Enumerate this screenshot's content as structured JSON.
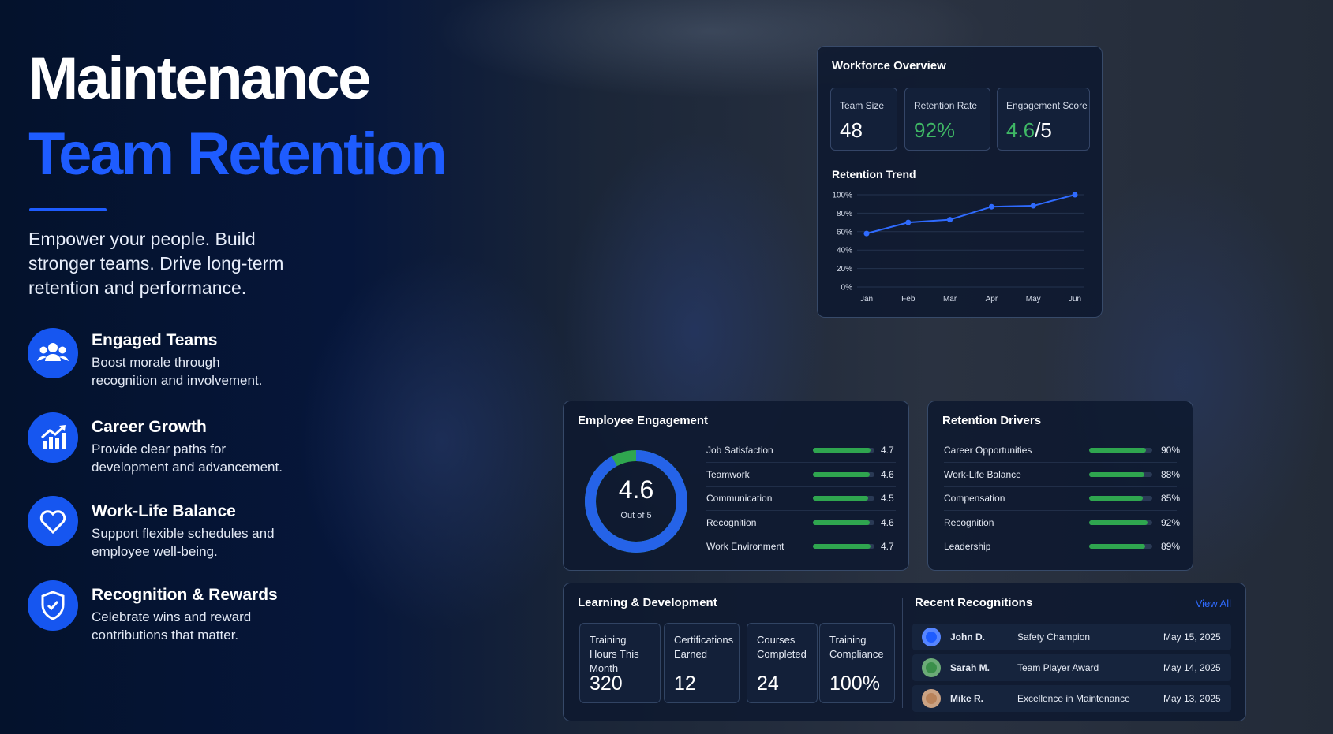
{
  "hero": {
    "title_line1": "Maintenance",
    "title_line2": "Team Retention",
    "subtitle": "Empower your people. Build stronger teams. Drive long-term retention and performance."
  },
  "features": [
    {
      "title": "Engaged Teams",
      "text": "Boost morale through recognition and involvement."
    },
    {
      "title": "Career Growth",
      "text": "Provide clear paths for development and advancement."
    },
    {
      "title": "Work-Life Balance",
      "text": "Support flexible schedules and employee well-being."
    },
    {
      "title": "Recognition & Rewards",
      "text": "Celebrate wins and reward contributions that matter."
    }
  ],
  "workforce_overview": {
    "title": "Workforce Overview",
    "kpis": [
      {
        "label": "Team Size",
        "value": "48"
      },
      {
        "label": "Retention Rate",
        "value": "92%"
      },
      {
        "label": "Engagement Score",
        "value": "4.6",
        "suffix": "/5"
      }
    ]
  },
  "chart_data": {
    "type": "line",
    "title": "Retention Trend",
    "categories": [
      "Jan",
      "Feb",
      "Mar",
      "Apr",
      "May",
      "Jun"
    ],
    "values": [
      58,
      70,
      73,
      87,
      88,
      100
    ],
    "color": "#2f6bff",
    "ylim": [
      0,
      100
    ],
    "yticks": [
      {
        "value": 0,
        "label": "0%"
      },
      {
        "value": 20,
        "label": "20%"
      },
      {
        "value": 40,
        "label": "40%"
      },
      {
        "value": 60,
        "label": "60%"
      },
      {
        "value": 80,
        "label": "80%"
      },
      {
        "value": 100,
        "label": "100%"
      }
    ],
    "grid": true
  },
  "employee_engagement": {
    "title": "Employee Engagement",
    "score": 4.6,
    "score_label": "Out of 5",
    "max": 5,
    "items": [
      {
        "name": "Job Satisfaction",
        "value": 4.7
      },
      {
        "name": "Teamwork",
        "value": 4.6
      },
      {
        "name": "Communication",
        "value": 4.5
      },
      {
        "name": "Recognition",
        "value": 4.6
      },
      {
        "name": "Work Environment",
        "value": 4.7
      }
    ]
  },
  "retention_drivers": {
    "title": "Retention Drivers",
    "items": [
      {
        "name": "Career Opportunities",
        "value": 90,
        "label": "90%"
      },
      {
        "name": "Work-Life Balance",
        "value": 88,
        "label": "88%"
      },
      {
        "name": "Compensation",
        "value": 85,
        "label": "85%"
      },
      {
        "name": "Recognition",
        "value": 92,
        "label": "92%"
      },
      {
        "name": "Leadership",
        "value": 89,
        "label": "89%"
      }
    ]
  },
  "learning_development": {
    "title": "Learning & Development",
    "stats": [
      {
        "label": "Training Hours This Month",
        "value": "320"
      },
      {
        "label": "Certifications Earned",
        "value": "12"
      },
      {
        "label": "Courses Completed",
        "value": "24"
      },
      {
        "label": "Training Compliance",
        "value": "100%"
      }
    ]
  },
  "recent_recognitions": {
    "title": "Recent Recognitions",
    "link": "View All",
    "items": [
      {
        "name": "John D.",
        "award": "Safety Champion",
        "date": "May 15, 2025"
      },
      {
        "name": "Sarah M.",
        "award": "Team Player Award",
        "date": "May 14, 2025"
      },
      {
        "name": "Mike R.",
        "award": "Excellence in Maintenance",
        "date": "May 13, 2025"
      }
    ]
  }
}
